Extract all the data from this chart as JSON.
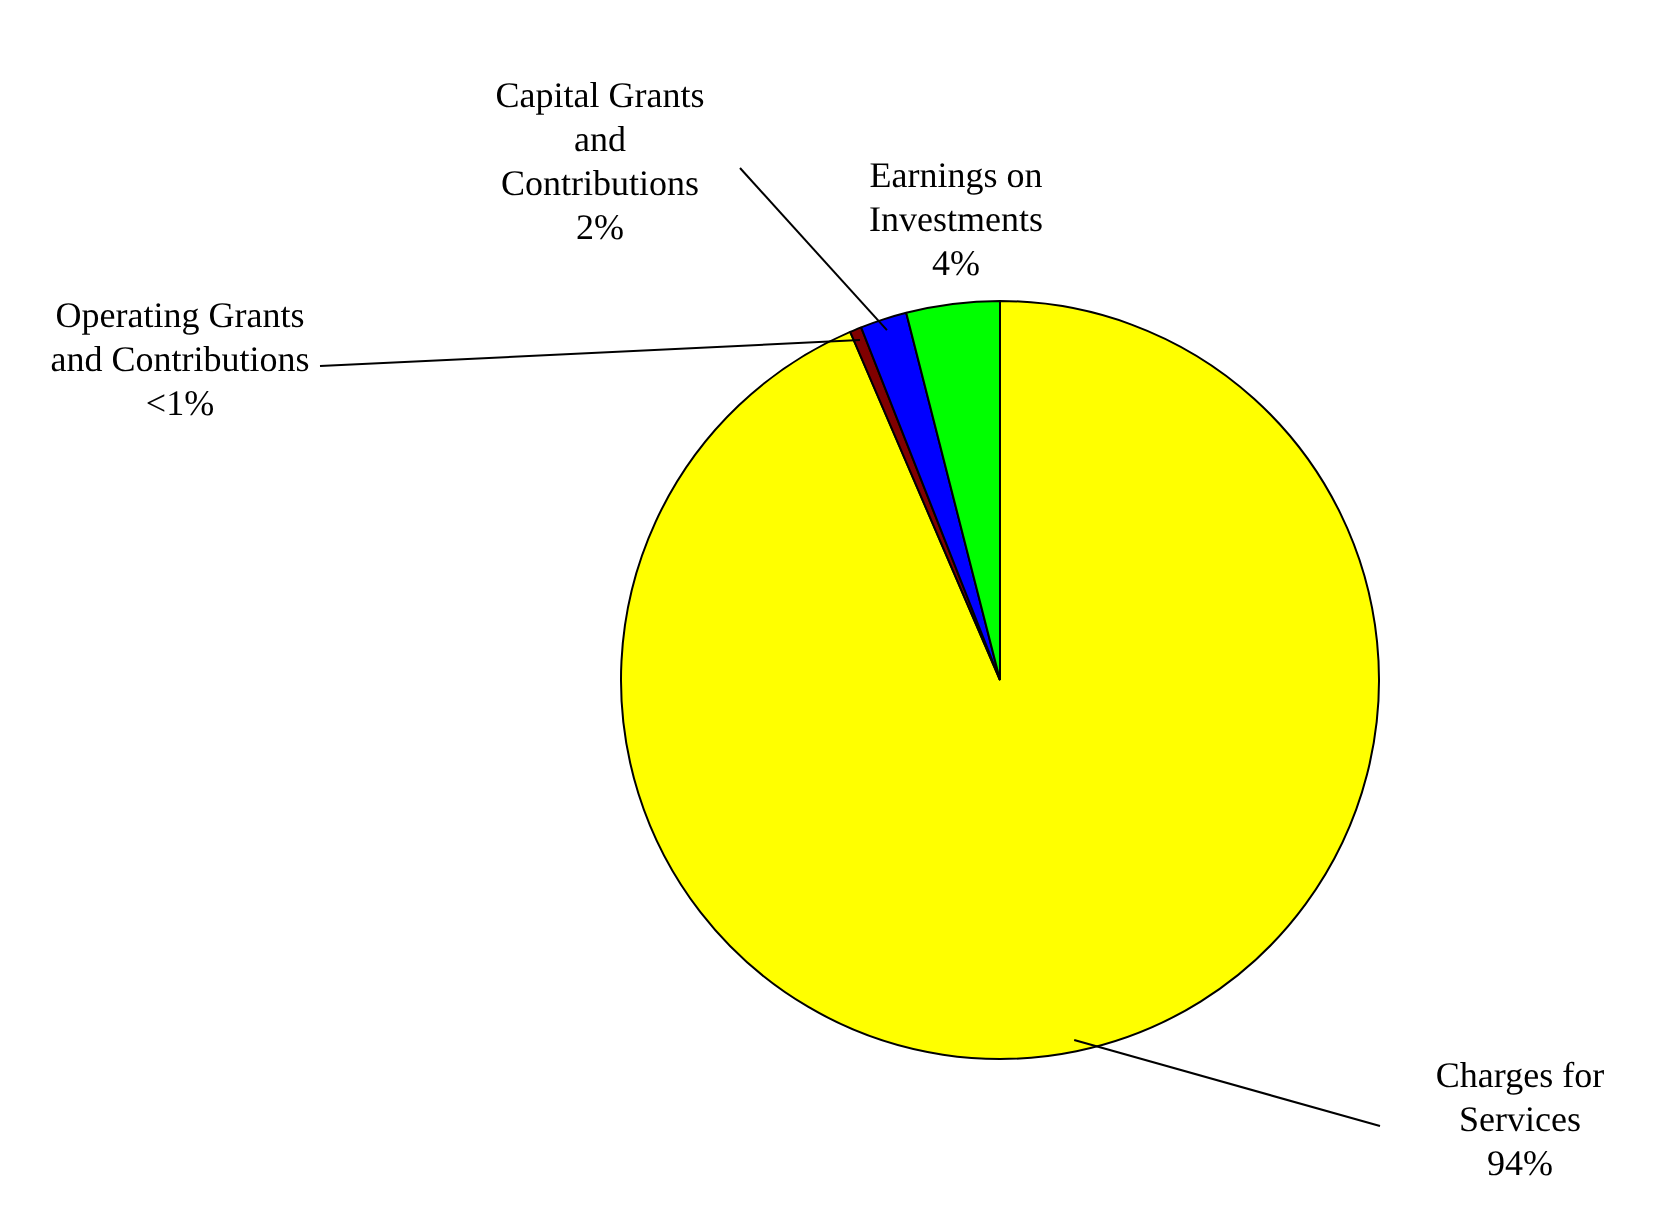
{
  "chart_data": {
    "type": "pie",
    "categories": [
      "Charges for Services",
      "Operating Grants and Contributions",
      "Capital Grants and Contributions",
      "Earnings on Investments"
    ],
    "values": [
      94,
      0.5,
      2,
      4
    ],
    "value_labels": [
      "94%",
      "<1%",
      "2%",
      "4%"
    ],
    "colors": [
      "#ffff00",
      "#800000",
      "#0000ff",
      "#00ff00"
    ],
    "legend": false
  }
}
